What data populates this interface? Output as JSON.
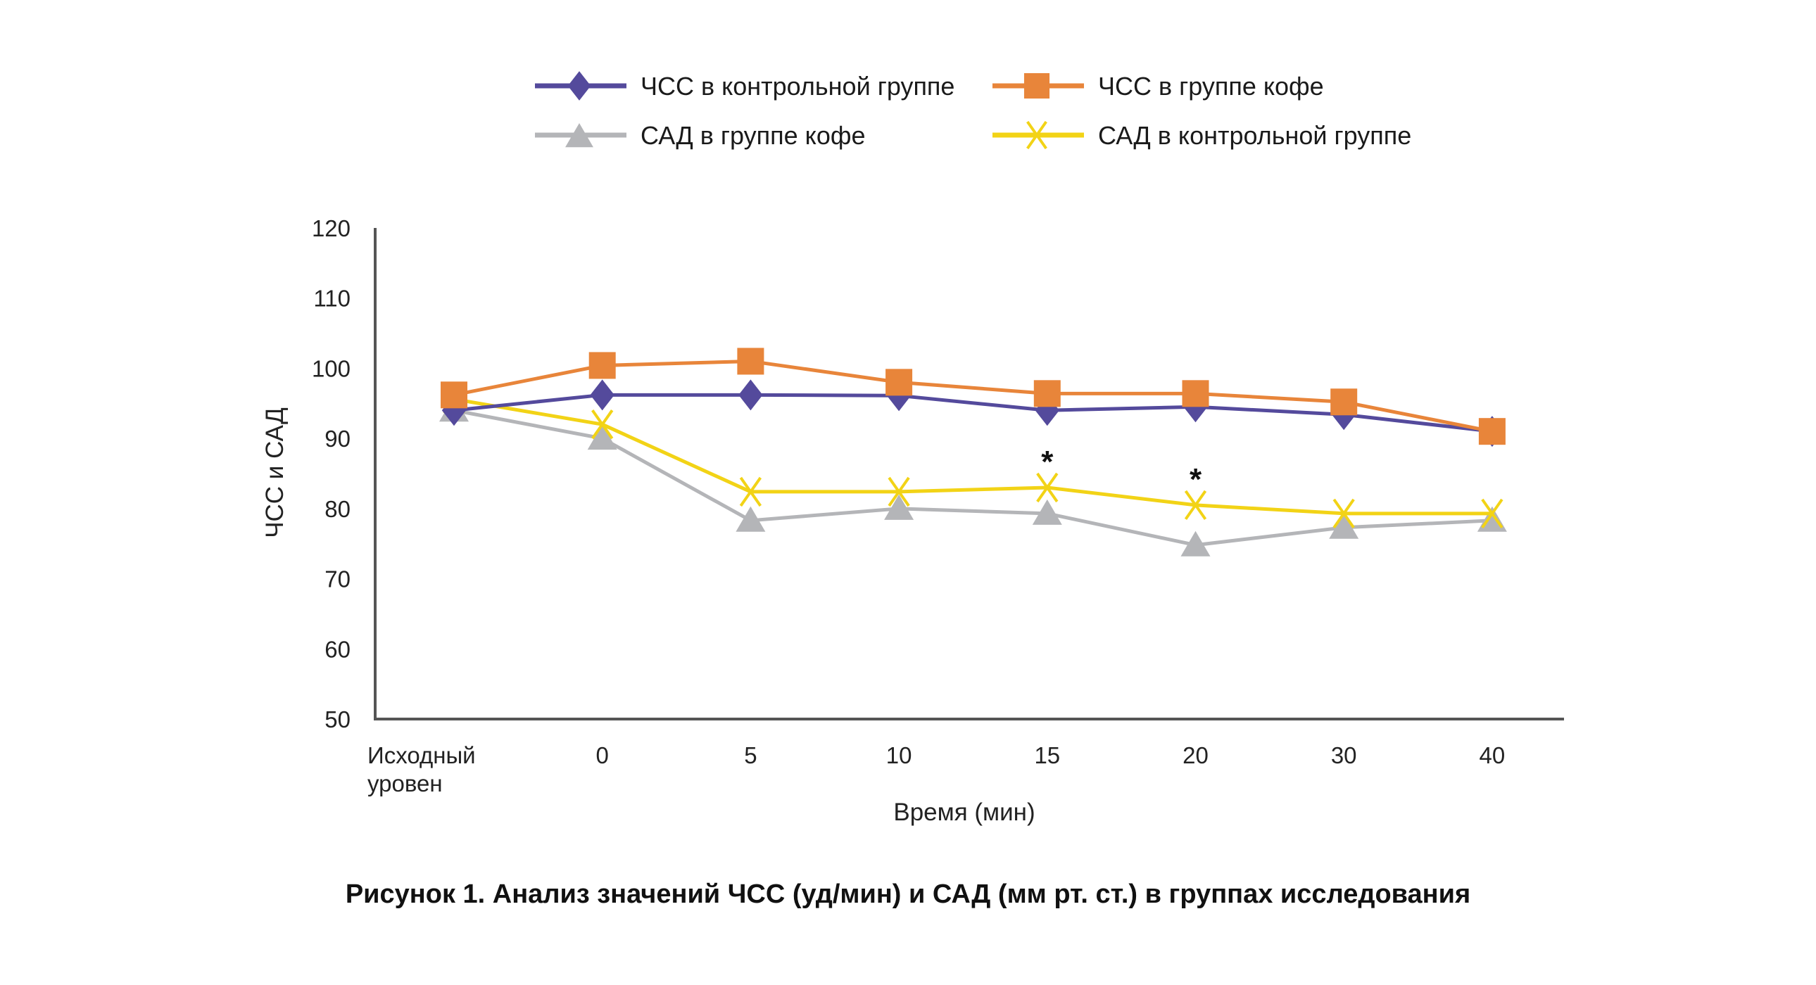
{
  "chart_data": {
    "type": "line",
    "title": "",
    "caption": "Рисунок 1. Анализ значений ЧСС (уд/мин) и САД (мм рт. ст.) в группах исследования",
    "xlabel": "Время (мин)",
    "ylabel": "ЧСС и САД",
    "categories": [
      "Исходный уровен",
      "0",
      "5",
      "10",
      "15",
      "20",
      "30",
      "40"
    ],
    "category_lines": [
      [
        "Исходный",
        "уровен"
      ],
      [
        "0"
      ],
      [
        "5"
      ],
      [
        "10"
      ],
      [
        "15"
      ],
      [
        "20"
      ],
      [
        "30"
      ],
      [
        "40"
      ]
    ],
    "ylim": [
      50,
      120
    ],
    "yticks": [
      50,
      60,
      70,
      80,
      90,
      100,
      110,
      120
    ],
    "grid": false,
    "legend_position": "top",
    "series": [
      {
        "name": "ЧСС в контрольной группе",
        "color": "#544a9c",
        "marker": "diamond",
        "values": [
          94.0,
          96.2,
          96.2,
          96.1,
          94.0,
          94.5,
          93.4,
          91.0
        ]
      },
      {
        "name": "ЧСС в группе кофе",
        "color": "#e8853a",
        "marker": "square",
        "values": [
          96.2,
          100.4,
          101.0,
          98.0,
          96.4,
          96.4,
          95.2,
          91.0
        ]
      },
      {
        "name": "САД в группе кофе",
        "color": "#b4b5b8",
        "marker": "triangle",
        "values": [
          94.0,
          90.0,
          78.3,
          80.0,
          79.3,
          74.8,
          77.3,
          78.3
        ]
      },
      {
        "name": "САД в контрольной группе",
        "color": "#f2d316",
        "marker": "x",
        "values": [
          95.6,
          92.0,
          82.4,
          82.4,
          83.0,
          80.5,
          79.3,
          79.3
        ]
      }
    ],
    "annotations": [
      {
        "text": "*",
        "category": "15",
        "series": "САД в контрольной группе"
      },
      {
        "text": "*",
        "category": "20",
        "series": "САД в контрольной группе"
      }
    ]
  }
}
